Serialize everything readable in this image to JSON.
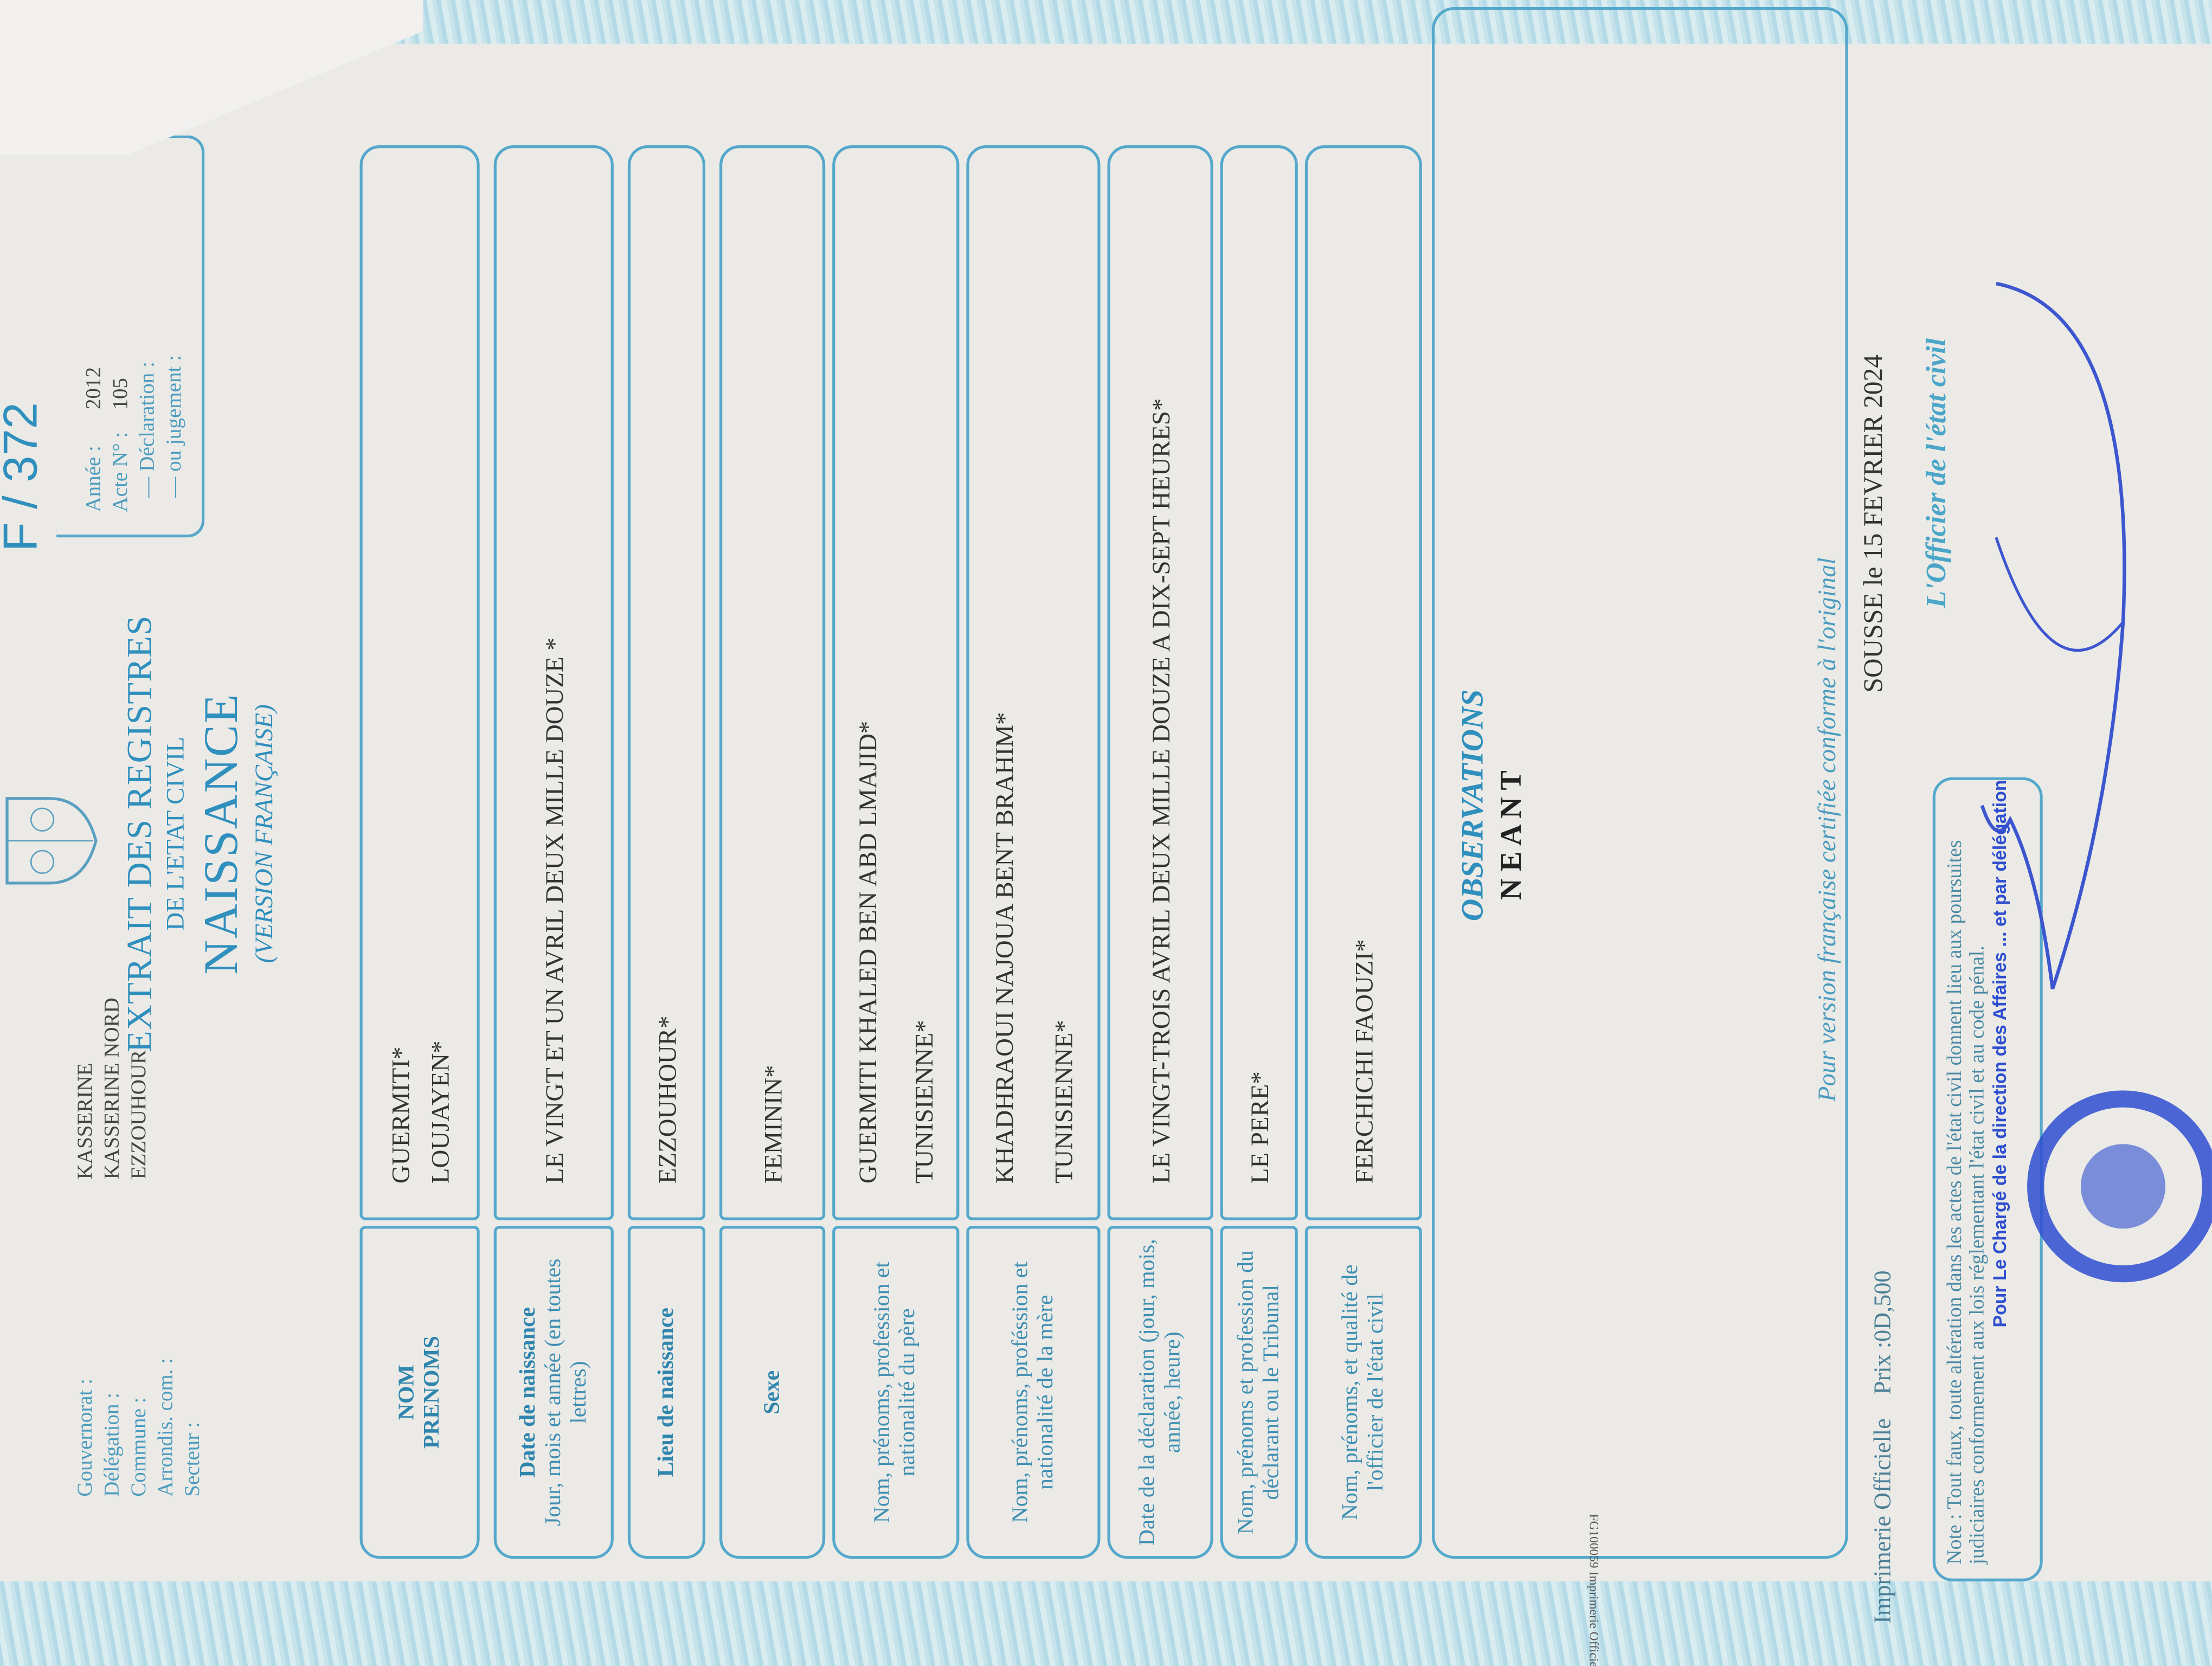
{
  "header": {
    "form_number": "F /  372",
    "location_labels": [
      "Gouvernorat :",
      "Délégation :",
      "Commune :",
      "Arrondis. com. :",
      "Secteur :"
    ],
    "location_values": [
      "KASSERINE",
      "KASSERINE NORD",
      "EZZOUHOUR",
      "",
      ""
    ],
    "title_line1": "EXTRAIT DES REGISTRES",
    "title_line2": "DE L'ETAT CIVIL",
    "title_main": "NAISSANCE",
    "title_sub": "(VERSION FRANÇAISE)",
    "act": {
      "annee_label": "Année :",
      "annee_value": "2012",
      "acte_label": "Acte N° :",
      "acte_value": "105",
      "declaration_label": "— Déclaration :",
      "jugement_label": "— ou jugement :"
    }
  },
  "rows": [
    {
      "label_bold": "NOM",
      "label_bold2": "PRENOMS",
      "label": "",
      "values": [
        "GUERMITI*",
        "LOUJAYEN*"
      ]
    },
    {
      "label_bold": "Date de naissance",
      "label": "Jour, mois et année (en toutes lettres)",
      "values": [
        "LE VINGT ET UN AVRIL  DEUX MILLE DOUZE *"
      ]
    },
    {
      "label_bold": "Lieu de naissance",
      "label": "",
      "values": [
        "EZZOUHOUR*"
      ]
    },
    {
      "label_bold": "Sexe",
      "label": "",
      "values": [
        "FEMININ*"
      ]
    },
    {
      "label_bold": "",
      "label": "Nom, prénoms, profession et nationalité du père",
      "values": [
        "GUERMITI KHALED BEN ABD LMAJID*",
        "TUNISIENNE*"
      ]
    },
    {
      "label_bold": "",
      "label": "Nom, prénoms, proféssion et nationalité de la mère",
      "values": [
        "KHADHRAOUI NAJOUA BENT BRAHIM*",
        "TUNISIENNE*"
      ]
    },
    {
      "label_bold": "",
      "label": "Date de la déclaration (jour, mois, année, heure)",
      "values": [
        "LE VINGT-TROIS AVRIL  DEUX MILLE DOUZE  A DIX-SEPT HEURES*"
      ]
    },
    {
      "label_bold": "",
      "label": "Nom, prénoms et profession du déclarant ou le Tribunal",
      "values": [
        "LE PERE*"
      ]
    },
    {
      "label_bold": "",
      "label": "Nom, prénoms, et qualité de l'officier de l'état civil",
      "values": [
        "FERCHICHI FAOUZI*"
      ]
    }
  ],
  "observations": {
    "title": "OBSERVATIONS",
    "value": "N E A N T"
  },
  "footer": {
    "printer": "Imprimerie Officielle",
    "price": "Prix :0D,500",
    "certified": "Pour version française certifiée conforme à l'original",
    "place_date": "SOUSSE le   15   FEVRIER 2024",
    "officer": "L'Officier de l'état civil",
    "note": "Note : Tout faux, toute altération dans les actes de l'état civil donnent lieu aux poursuites judiciaires conformement aux lois réglementant l'état civil et au code pénal.",
    "side_print": "FG100059 Imprimerie Officielle",
    "stamp_text": "Pour Le Chargé de la direction des Affaires ... et par délégation"
  },
  "colors": {
    "form_blue": "#55a8cb",
    "title_blue": "#2f8fbd",
    "ink_blue": "#2f4fd0",
    "paper": "#ebeae6"
  }
}
